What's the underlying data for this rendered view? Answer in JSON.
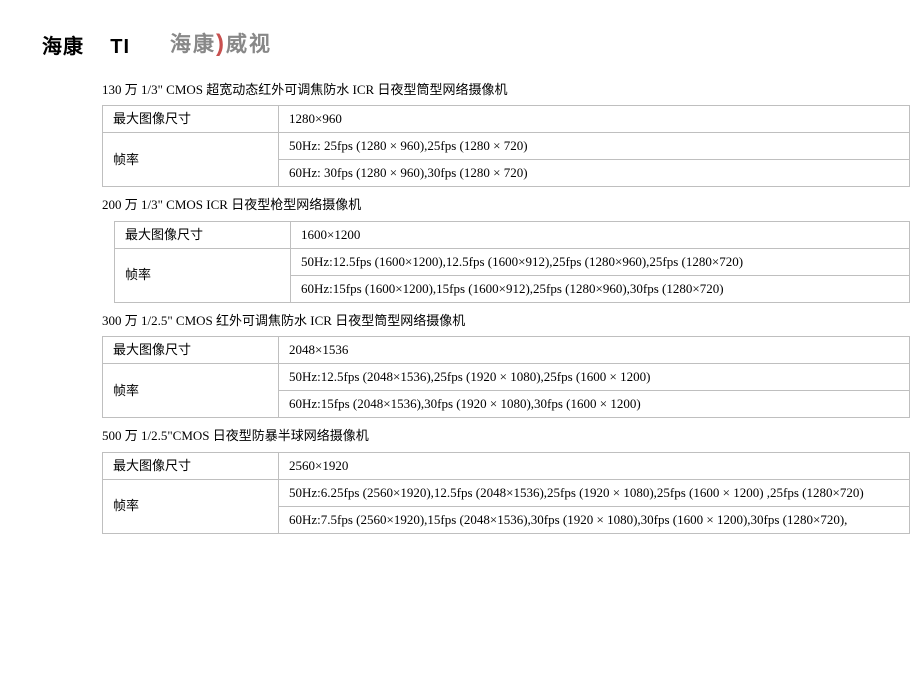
{
  "header": {
    "brand_cn": "海康",
    "brand_code": "TI",
    "logo_part1": "海康",
    "logo_paren": ")",
    "logo_part2": "威视"
  },
  "products": [
    {
      "title": "130 万 1/3\" CMOS 超宽动态红外可调焦防水 ICR 日夜型筒型网络摄像机",
      "indent": "1",
      "rows": {
        "max_size_label": "最大图像尺寸",
        "max_size_value": "1280×960",
        "fps_label": "帧率",
        "fps_50": "50Hz: 25fps (1280 × 960),25fps (1280 × 720)",
        "fps_60": "60Hz: 30fps (1280 × 960),30fps (1280 × 720)"
      }
    },
    {
      "title": "200 万 1/3\" CMOS ICR 日夜型枪型网络摄像机",
      "indent": "2",
      "rows": {
        "max_size_label": "最大图像尺寸",
        "max_size_value": "1600×1200",
        "fps_label": "帧率",
        "fps_50": "50Hz:12.5fps (1600×1200),12.5fps (1600×912),25fps (1280×960),25fps (1280×720)",
        "fps_60": "60Hz:15fps (1600×1200),15fps (1600×912),25fps (1280×960),30fps (1280×720)"
      }
    },
    {
      "title": "300 万 1/2.5\" CMOS 红外可调焦防水 ICR 日夜型筒型网络摄像机",
      "indent": "1",
      "rows": {
        "max_size_label": "最大图像尺寸",
        "max_size_value": "2048×1536",
        "fps_label": "帧率",
        "fps_50": "50Hz:12.5fps (2048×1536),25fps (1920 × 1080),25fps (1600 × 1200)",
        "fps_60": "60Hz:15fps (2048×1536),30fps (1920 × 1080),30fps (1600 × 1200)"
      }
    },
    {
      "title": "500 万 1/2.5\"CMOS 日夜型防暴半球网络摄像机",
      "indent": "1",
      "rows": {
        "max_size_label": "最大图像尺寸",
        "max_size_value": "2560×1920",
        "fps_label": "帧率",
        "fps_50": "50Hz:6.25fps (2560×1920),12.5fps (2048×1536),25fps (1920 × 1080),25fps (1600 × 1200) ,25fps (1280×720)",
        "fps_60": "60Hz:7.5fps (2560×1920),15fps (2048×1536),30fps (1920 × 1080),30fps (1600 × 1200),30fps (1280×720),"
      }
    }
  ]
}
